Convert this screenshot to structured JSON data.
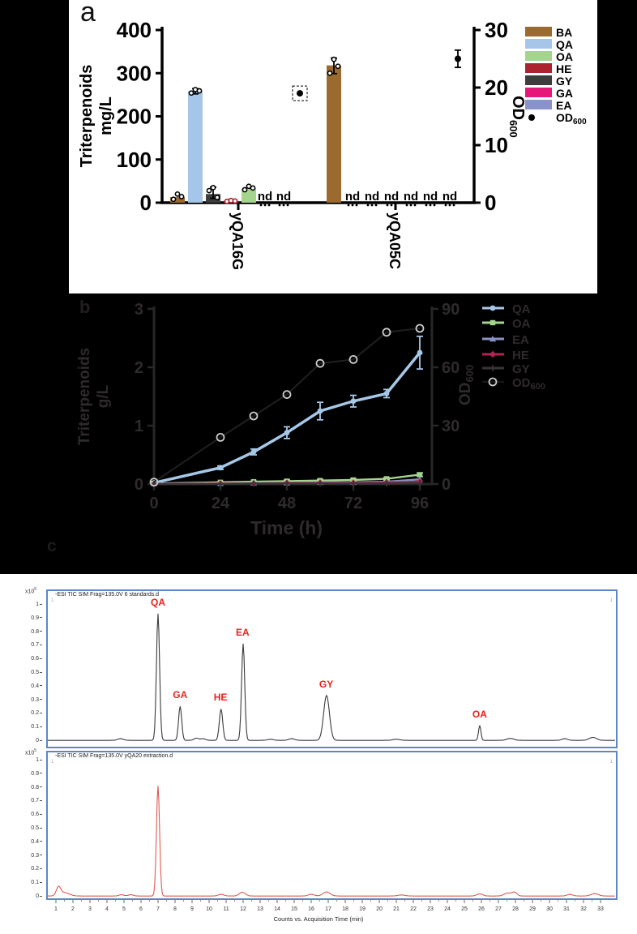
{
  "panel_a": {
    "label": "a",
    "y_left": {
      "title_line1": "Triterpenoids",
      "title_line2": "mg/L",
      "ticks": [
        0,
        100,
        200,
        300,
        400
      ],
      "max": 400
    },
    "y_right": {
      "title": "OD",
      "title_sub": "600",
      "ticks": [
        0,
        10,
        20,
        30
      ],
      "max": 30
    },
    "nd_text": "nd",
    "colors": {
      "BA": "#9a6a2f",
      "QA": "#a5c6e8",
      "OA": "#a5d48e",
      "HE": "#ab232e",
      "GY": "#3d3d3d",
      "GA": "#e5187a",
      "EA": "#8a92cc",
      "OD600": "#000000"
    },
    "legend": [
      {
        "key": "BA"
      },
      {
        "key": "QA"
      },
      {
        "key": "OA"
      },
      {
        "key": "HE"
      },
      {
        "key": "GY"
      },
      {
        "key": "GA"
      },
      {
        "key": "EA"
      },
      {
        "key": "OD",
        "sub": "600",
        "marker": "dot"
      }
    ],
    "chart_data": {
      "type": "bar",
      "groups": [
        {
          "name": "yQA16G",
          "bars": [
            {
              "key": "BA",
              "value": 13,
              "points": [
                8,
                20,
                14
              ]
            },
            {
              "key": "QA",
              "value": 258,
              "points": [
                254,
                262,
                259
              ],
              "err": [
                252,
                264
              ]
            },
            {
              "key": "GY",
              "value": 20,
              "points": [
                28,
                35,
                12
              ],
              "err": [
                10,
                36
              ]
            },
            {
              "key": "HE",
              "value": 4,
              "points": [
                3,
                5,
                4
              ],
              "open_color": true
            },
            {
              "key": "OA",
              "value": 33,
              "points": [
                30,
                38,
                34
              ]
            },
            {
              "key": "GA",
              "value": "nd"
            },
            {
              "key": "EA",
              "value": "nd"
            }
          ],
          "od600": {
            "value": 19,
            "selected": true
          }
        },
        {
          "name": "yQA05C",
          "bars": [
            {
              "key": "BA",
              "value": 318,
              "points": [
                300,
                332,
                316
              ],
              "err": [
                299,
                335
              ]
            },
            {
              "key": "QA",
              "value": "nd"
            },
            {
              "key": "OA",
              "value": "nd"
            },
            {
              "key": "HE",
              "value": "nd"
            },
            {
              "key": "GY",
              "value": "nd"
            },
            {
              "key": "GA",
              "value": "nd"
            },
            {
              "key": "EA",
              "value": "nd"
            }
          ],
          "od600": {
            "value": 25,
            "err": 1.5
          }
        }
      ],
      "ylabel": "Triterpenoids mg/L",
      "y2label": "OD600",
      "ylim": [
        0,
        400
      ],
      "y2lim": [
        0,
        30
      ]
    }
  },
  "panel_b": {
    "label": "b",
    "xlabel": "Time (h)",
    "y_left": {
      "title_line1": "Triterpenoids",
      "title_line2": "g/L",
      "ticks": [
        0,
        1,
        2,
        3
      ],
      "max": 3
    },
    "y_right": {
      "title": "OD",
      "title_sub": "600",
      "ticks": [
        0,
        30,
        60,
        90
      ],
      "max": 90
    },
    "xticks": [
      0,
      24,
      48,
      72,
      96
    ],
    "chart_data": {
      "type": "line",
      "x": [
        0,
        24,
        36,
        48,
        60,
        72,
        84,
        96
      ],
      "series": [
        {
          "name": "QA",
          "color": "#a6c8e8",
          "marker": "circle",
          "axis": "left",
          "values": [
            0.02,
            0.28,
            0.55,
            0.88,
            1.25,
            1.42,
            1.55,
            2.25
          ],
          "err": [
            0.02,
            0.03,
            0.05,
            0.1,
            0.15,
            0.1,
            0.07,
            0.28
          ]
        },
        {
          "name": "OA",
          "color": "#a5d48e",
          "marker": "square",
          "axis": "left",
          "values": [
            0.01,
            0.03,
            0.04,
            0.05,
            0.06,
            0.07,
            0.09,
            0.16
          ],
          "err": [
            0.01,
            0.01,
            0.01,
            0.02,
            0.02,
            0.02,
            0.02,
            0.03
          ]
        },
        {
          "name": "EA",
          "color": "#8a92c6",
          "marker": "triangle",
          "axis": "left",
          "values": [
            0.01,
            0.01,
            0.02,
            0.02,
            0.03,
            0.03,
            0.04,
            0.08
          ]
        },
        {
          "name": "HE",
          "color": "#b02454",
          "marker": "diamond",
          "axis": "left",
          "values": [
            0.0,
            0.01,
            0.01,
            0.02,
            0.02,
            0.02,
            0.03,
            0.04
          ]
        },
        {
          "name": "GY",
          "color": "#3a3436",
          "marker": "plus",
          "axis": "left",
          "values": [
            0.0,
            0.0,
            0.01,
            0.01,
            0.01,
            0.01,
            0.01,
            0.02
          ]
        },
        {
          "name": "OD",
          "sub": "600",
          "color": "#cccccc",
          "line_color": "#202020",
          "marker": "ocircle",
          "axis": "right",
          "values": [
            1,
            24,
            35,
            46,
            62,
            64,
            78,
            80
          ]
        }
      ],
      "xlabel": "Time (h)",
      "ylabel": "Triterpenoids g/L",
      "y2label": "OD600",
      "xlim": [
        0,
        96
      ],
      "ylim": [
        0,
        3
      ],
      "y2lim": [
        0,
        90
      ],
      "legend_position": "right"
    }
  },
  "panel_c": {
    "label": "c",
    "scale_base": "x10",
    "scale_exp": "5",
    "corner_text": "1",
    "yticks": [
      "1",
      "0.9",
      "0.8",
      "0.7",
      "0.6",
      "0.5",
      "0.4",
      "0.3",
      "0.2",
      "0.1",
      "0"
    ],
    "xticks": [
      1,
      2,
      3,
      4,
      5,
      6,
      7,
      8,
      9,
      10,
      11,
      12,
      13,
      14,
      15,
      16,
      17,
      18,
      19,
      20,
      21,
      22,
      23,
      24,
      25,
      26,
      27,
      28,
      29,
      30,
      31,
      32,
      33
    ],
    "xlabel": "Counts vs. Acquisition Time (min)",
    "chromatograms": [
      {
        "header": "-ESI TIC SIM Frag=135.0V 6 standards.d",
        "trace_color": "#3a3a3a",
        "labeled_peaks": [
          {
            "label": "QA",
            "t": 7.0,
            "h": 0.93,
            "w": 0.13
          },
          {
            "label": "GA",
            "t": 8.3,
            "h": 0.25,
            "w": 0.13
          },
          {
            "label": "HE",
            "t": 10.7,
            "h": 0.23,
            "w": 0.14
          },
          {
            "label": "EA",
            "t": 12.0,
            "h": 0.71,
            "w": 0.13
          },
          {
            "label": "GY",
            "t": 16.9,
            "h": 0.33,
            "w": 0.24
          },
          {
            "label": "OA",
            "t": 25.9,
            "h": 0.11,
            "w": 0.1
          }
        ],
        "minor_peaks": [
          {
            "t": 4.8,
            "h": 0.012,
            "w": 0.25
          },
          {
            "t": 9.25,
            "h": 0.016,
            "w": 0.2
          },
          {
            "t": 9.65,
            "h": 0.012,
            "w": 0.2
          },
          {
            "t": 13.6,
            "h": 0.008,
            "w": 0.25
          },
          {
            "t": 14.85,
            "h": 0.012,
            "w": 0.25
          },
          {
            "t": 21.0,
            "h": 0.008,
            "w": 0.3
          },
          {
            "t": 27.7,
            "h": 0.014,
            "w": 0.3
          },
          {
            "t": 30.9,
            "h": 0.012,
            "w": 0.25
          },
          {
            "t": 32.55,
            "h": 0.022,
            "w": 0.3
          }
        ]
      },
      {
        "header": "-ESI TIC SIM Frag=135.0V yQA20 extraction.d",
        "trace_color": "#e05a52",
        "labeled_peaks": [],
        "minor_peaks": [
          {
            "t": 1.15,
            "h": 0.06,
            "w": 0.18
          },
          {
            "t": 1.5,
            "h": 0.025,
            "w": 0.4
          },
          {
            "t": 4.85,
            "h": 0.01,
            "w": 0.2
          },
          {
            "t": 5.4,
            "h": 0.01,
            "w": 0.2
          },
          {
            "t": 7.0,
            "h": 0.81,
            "w": 0.13
          },
          {
            "t": 10.7,
            "h": 0.012,
            "w": 0.25
          },
          {
            "t": 11.95,
            "h": 0.028,
            "w": 0.25
          },
          {
            "t": 16.0,
            "h": 0.013,
            "w": 0.25
          },
          {
            "t": 16.9,
            "h": 0.03,
            "w": 0.3
          },
          {
            "t": 21.3,
            "h": 0.008,
            "w": 0.3
          },
          {
            "t": 25.9,
            "h": 0.016,
            "w": 0.25
          },
          {
            "t": 27.55,
            "h": 0.022,
            "w": 0.3
          },
          {
            "t": 27.95,
            "h": 0.026,
            "w": 0.2
          },
          {
            "t": 31.2,
            "h": 0.012,
            "w": 0.25
          },
          {
            "t": 32.65,
            "h": 0.018,
            "w": 0.3
          }
        ]
      }
    ]
  }
}
